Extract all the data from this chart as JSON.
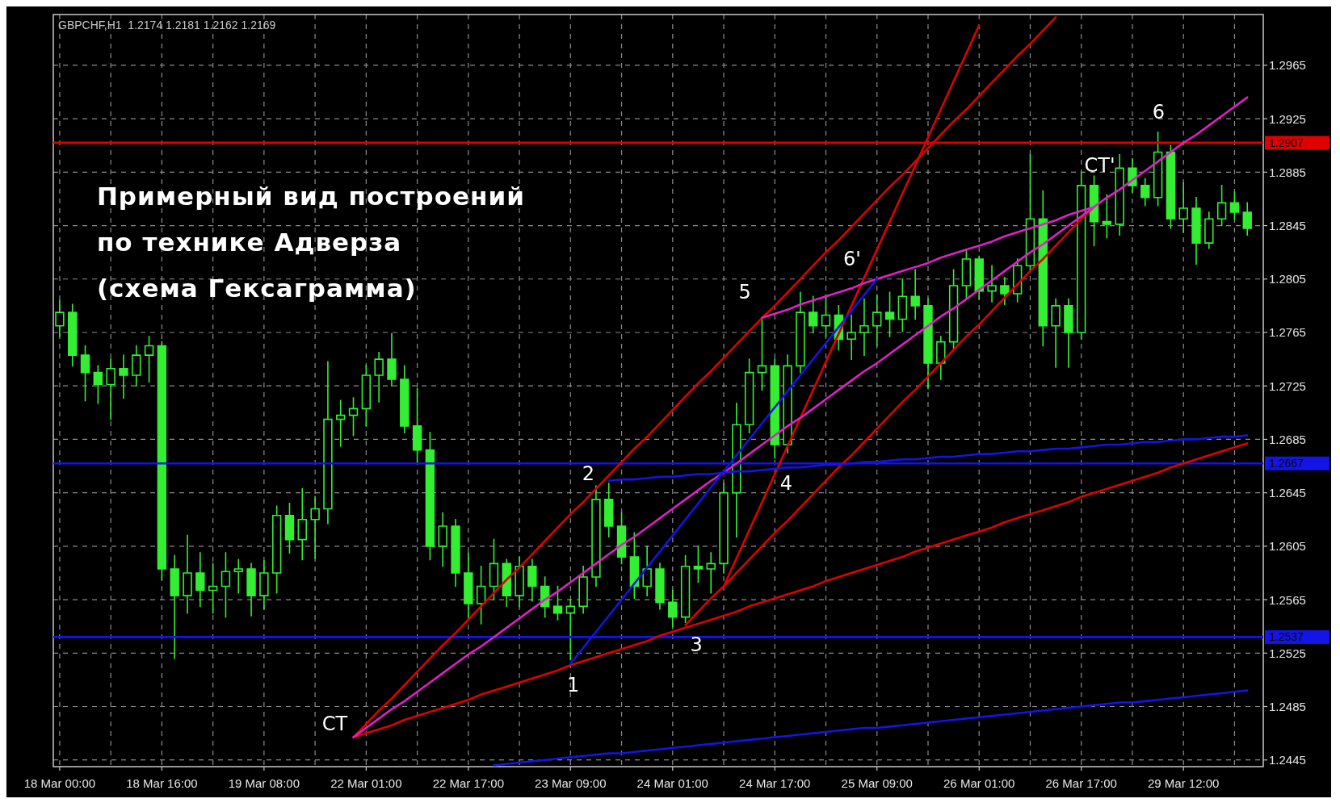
{
  "chart_data": {
    "type": "candlestick",
    "title": "GBPCHF,H1  1.2174 1.2181 1.2162 1.2169",
    "color": "#33ee33",
    "categories": [
      "18 Mar 00:00",
      null,
      null,
      null,
      null,
      null,
      null,
      null,
      "18 Mar 16:00",
      null,
      null,
      null,
      null,
      null,
      null,
      null,
      "19 Mar 08:00",
      null,
      null,
      null,
      null,
      null,
      null,
      null,
      "22 Mar 01:00",
      null,
      null,
      null,
      null,
      null,
      null,
      null,
      "22 Mar 17:00",
      null,
      null,
      null,
      null,
      null,
      null,
      null,
      "23 Mar 09:00",
      null,
      null,
      null,
      null,
      null,
      null,
      null,
      "24 Mar 01:00",
      null,
      null,
      null,
      null,
      null,
      null,
      null,
      "24 Mar 17:00",
      null,
      null,
      null,
      null,
      null,
      null,
      null,
      "25 Mar 09:00",
      null,
      null,
      null,
      null,
      null,
      null,
      null,
      "26 Mar 01:00",
      null,
      null,
      null,
      null,
      null,
      null,
      null,
      "26 Mar 17:00",
      null,
      null,
      null,
      null,
      null,
      null,
      null,
      "29 Mar 12:00",
      null,
      null,
      null,
      null,
      null
    ],
    "ohlc": [
      [
        1.277,
        1.2789,
        1.2762,
        1.278
      ],
      [
        1.278,
        1.2786,
        1.274,
        1.2748
      ],
      [
        1.2748,
        1.2755,
        1.2714,
        1.2735
      ],
      [
        1.2735,
        1.274,
        1.2712,
        1.2726
      ],
      [
        1.2726,
        1.2745,
        1.27,
        1.2738
      ],
      [
        1.2738,
        1.2748,
        1.2716,
        1.2733
      ],
      [
        1.2733,
        1.2755,
        1.2725,
        1.2748
      ],
      [
        1.2748,
        1.2762,
        1.2728,
        1.2755
      ],
      [
        1.2755,
        1.2758,
        1.258,
        1.2588
      ],
      [
        1.2588,
        1.2598,
        1.2521,
        1.2568
      ],
      [
        1.2568,
        1.2613,
        1.2555,
        1.2585
      ],
      [
        1.2585,
        1.26,
        1.256,
        1.2572
      ],
      [
        1.2572,
        1.2592,
        1.2555,
        1.2575
      ],
      [
        1.2575,
        1.26,
        1.2552,
        1.2586
      ],
      [
        1.2586,
        1.2595,
        1.257,
        1.2588
      ],
      [
        1.2588,
        1.2592,
        1.2553,
        1.2568
      ],
      [
        1.2568,
        1.2594,
        1.2558,
        1.2585
      ],
      [
        1.2585,
        1.2635,
        1.257,
        1.2628
      ],
      [
        1.2628,
        1.2637,
        1.26,
        1.261
      ],
      [
        1.261,
        1.2648,
        1.2595,
        1.2625
      ],
      [
        1.2625,
        1.2642,
        1.2596,
        1.2633
      ],
      [
        1.2633,
        1.2743,
        1.2622,
        1.27
      ],
      [
        1.27,
        1.2714,
        1.268,
        1.2703
      ],
      [
        1.2703,
        1.2716,
        1.2688,
        1.2708
      ],
      [
        1.2708,
        1.274,
        1.2695,
        1.2733
      ],
      [
        1.2733,
        1.275,
        1.2713,
        1.2745
      ],
      [
        1.2745,
        1.2764,
        1.2725,
        1.273
      ],
      [
        1.273,
        1.274,
        1.269,
        1.2695
      ],
      [
        1.2695,
        1.2723,
        1.2668,
        1.2677
      ],
      [
        1.2677,
        1.269,
        1.2595,
        1.2605
      ],
      [
        1.2605,
        1.263,
        1.259,
        1.262
      ],
      [
        1.262,
        1.2625,
        1.2575,
        1.2585
      ],
      [
        1.2585,
        1.26,
        1.2552,
        1.2562
      ],
      [
        1.2562,
        1.259,
        1.2547,
        1.2575
      ],
      [
        1.2575,
        1.261,
        1.2565,
        1.2592
      ],
      [
        1.2592,
        1.2595,
        1.256,
        1.2568
      ],
      [
        1.2568,
        1.2597,
        1.256,
        1.259
      ],
      [
        1.259,
        1.2595,
        1.2564,
        1.2575
      ],
      [
        1.2575,
        1.2582,
        1.2552,
        1.256
      ],
      [
        1.256,
        1.2575,
        1.255,
        1.2555
      ],
      [
        1.2555,
        1.2565,
        1.252,
        1.256
      ],
      [
        1.256,
        1.259,
        1.2555,
        1.2582
      ],
      [
        1.2582,
        1.265,
        1.2575,
        1.264
      ],
      [
        1.264,
        1.2652,
        1.2612,
        1.262
      ],
      [
        1.262,
        1.263,
        1.2592,
        1.2597
      ],
      [
        1.2597,
        1.2615,
        1.2566,
        1.2575
      ],
      [
        1.2575,
        1.2605,
        1.2568,
        1.2588
      ],
      [
        1.2588,
        1.2592,
        1.2558,
        1.2563
      ],
      [
        1.2563,
        1.2572,
        1.2545,
        1.2552
      ],
      [
        1.2552,
        1.2598,
        1.2548,
        1.259
      ],
      [
        1.259,
        1.2605,
        1.2578,
        1.2588
      ],
      [
        1.2588,
        1.26,
        1.257,
        1.2592
      ],
      [
        1.2592,
        1.2652,
        1.2585,
        1.2645
      ],
      [
        1.2645,
        1.2712,
        1.2612,
        1.2696
      ],
      [
        1.2696,
        1.2745,
        1.269,
        1.2735
      ],
      [
        1.2735,
        1.2775,
        1.2722,
        1.274
      ],
      [
        1.274,
        1.2745,
        1.2671,
        1.2681
      ],
      [
        1.2681,
        1.2748,
        1.2675,
        1.274
      ],
      [
        1.274,
        1.2795,
        1.2735,
        1.278
      ],
      [
        1.278,
        1.2792,
        1.2765,
        1.277
      ],
      [
        1.277,
        1.2793,
        1.2762,
        1.2778
      ],
      [
        1.2778,
        1.2785,
        1.2752,
        1.276
      ],
      [
        1.276,
        1.2778,
        1.2745,
        1.2765
      ],
      [
        1.2765,
        1.279,
        1.2748,
        1.277
      ],
      [
        1.277,
        1.2793,
        1.2755,
        1.278
      ],
      [
        1.278,
        1.2795,
        1.2762,
        1.2775
      ],
      [
        1.2775,
        1.2805,
        1.2766,
        1.2792
      ],
      [
        1.2792,
        1.2812,
        1.2775,
        1.2785
      ],
      [
        1.2785,
        1.279,
        1.2723,
        1.2742
      ],
      [
        1.2742,
        1.2762,
        1.273,
        1.2758
      ],
      [
        1.2758,
        1.2812,
        1.2752,
        1.28
      ],
      [
        1.28,
        1.2827,
        1.279,
        1.282
      ],
      [
        1.282,
        1.2822,
        1.279,
        1.2796
      ],
      [
        1.2796,
        1.2815,
        1.2788,
        1.28
      ],
      [
        1.28,
        1.2806,
        1.2786,
        1.2794
      ],
      [
        1.2794,
        1.282,
        1.2788,
        1.2815
      ],
      [
        1.2815,
        1.2898,
        1.2812,
        1.285
      ],
      [
        1.285,
        1.2871,
        1.2755,
        1.277
      ],
      [
        1.277,
        1.279,
        1.2739,
        1.2785
      ],
      [
        1.2785,
        1.279,
        1.2739,
        1.2765
      ],
      [
        1.2765,
        1.2885,
        1.276,
        1.2875
      ],
      [
        1.2875,
        1.2882,
        1.283,
        1.2848
      ],
      [
        1.2848,
        1.2868,
        1.2836,
        1.2846
      ],
      [
        1.2846,
        1.2898,
        1.2838,
        1.2888
      ],
      [
        1.2888,
        1.2895,
        1.287,
        1.2875
      ],
      [
        1.2875,
        1.288,
        1.286,
        1.2866
      ],
      [
        1.2866,
        1.2915,
        1.286,
        1.29
      ],
      [
        1.29,
        1.2905,
        1.2843,
        1.285
      ],
      [
        1.285,
        1.2877,
        1.284,
        1.2858
      ],
      [
        1.2858,
        1.2866,
        1.2816,
        1.2832
      ],
      [
        1.2832,
        1.2855,
        1.2828,
        1.285
      ],
      [
        1.285,
        1.2875,
        1.2845,
        1.2862
      ],
      [
        1.2862,
        1.287,
        1.285,
        1.2855
      ],
      [
        1.2855,
        1.2862,
        1.2838,
        1.2843
      ]
    ],
    "series": [
      {
        "type": "line",
        "color": "#e00000",
        "values": [
          null,
          null,
          null,
          null,
          null,
          null,
          null,
          null,
          null,
          null,
          null,
          null,
          null,
          null,
          null,
          null,
          null,
          null,
          null,
          null,
          null,
          null,
          null,
          1.2462,
          1.2472,
          1.2482,
          1.2491,
          1.2501,
          1.2511,
          1.2521,
          1.2531,
          1.254,
          1.255,
          1.256,
          1.257,
          1.258,
          1.2589,
          1.2599,
          1.2609,
          1.2619,
          1.2629,
          1.2638,
          1.2648,
          1.2658,
          1.2668,
          1.2678,
          1.2687,
          1.2697,
          1.2707,
          1.2717,
          1.2727,
          1.2736,
          1.2746,
          1.2756,
          1.2766,
          1.2776,
          1.2785,
          1.2795,
          1.2805,
          1.2815,
          1.2825,
          1.2834,
          1.2844,
          1.2854,
          1.2864,
          1.2874,
          1.2883,
          1.2893,
          1.2903,
          1.2913,
          1.2923,
          1.2932,
          1.2942,
          1.2952,
          1.2962,
          1.2972,
          1.2981,
          1.2991,
          1.3001,
          null,
          null,
          null,
          null,
          null,
          null,
          null,
          null,
          null,
          null,
          null,
          null,
          null,
          null,
          null
        ]
      },
      {
        "type": "line",
        "color": "#e00000",
        "values": [
          null,
          null,
          null,
          null,
          null,
          null,
          null,
          null,
          null,
          null,
          null,
          null,
          null,
          null,
          null,
          null,
          null,
          null,
          null,
          null,
          null,
          null,
          null,
          null,
          null,
          null,
          null,
          null,
          null,
          null,
          null,
          null,
          null,
          null,
          null,
          null,
          null,
          null,
          null,
          null,
          null,
          null,
          null,
          null,
          null,
          null,
          null,
          null,
          null,
          null,
          null,
          null,
          1.2575,
          1.2596,
          1.2617,
          1.2638,
          1.2659,
          1.268,
          1.2701,
          1.2722,
          1.2743,
          1.2764,
          1.2785,
          1.2806,
          1.2827,
          1.2848,
          1.2869,
          1.289,
          1.2911,
          1.2932,
          1.2953,
          1.2974,
          1.2995,
          null,
          null,
          null,
          null,
          null,
          null,
          null,
          null,
          null,
          null,
          null,
          null,
          null,
          null,
          null,
          null,
          null,
          null,
          null,
          null,
          null
        ]
      },
      {
        "type": "line",
        "color": "#e00000",
        "values": [
          null,
          null,
          null,
          null,
          null,
          null,
          null,
          null,
          null,
          null,
          null,
          null,
          null,
          null,
          null,
          null,
          null,
          null,
          null,
          null,
          null,
          null,
          null,
          1.2462,
          1.2465,
          1.2468,
          1.2471,
          1.2475,
          1.2478,
          1.2481,
          1.2484,
          1.2487,
          1.249,
          1.2494,
          1.2497,
          1.25,
          1.2503,
          1.2506,
          1.2509,
          1.2512,
          1.2516,
          1.2519,
          1.2522,
          1.2525,
          1.2528,
          1.2531,
          1.2534,
          1.2538,
          1.2541,
          1.2544,
          1.2547,
          1.255,
          1.2553,
          1.2556,
          1.256,
          1.2563,
          1.2566,
          1.2569,
          1.2572,
          1.2575,
          1.2579,
          1.2582,
          1.2585,
          1.2588,
          1.2591,
          1.2594,
          1.2597,
          1.2601,
          1.2604,
          1.2607,
          1.261,
          1.2613,
          1.2616,
          1.2619,
          1.2623,
          1.2626,
          1.2629,
          1.2632,
          1.2635,
          1.2638,
          1.2642,
          1.2645,
          1.2648,
          1.2651,
          1.2654,
          1.2657,
          1.266,
          1.2664,
          1.2667,
          1.267,
          1.2673,
          1.2676,
          1.2679,
          1.2682
        ]
      },
      {
        "type": "line",
        "color": "#e00000",
        "values": [
          null,
          null,
          null,
          null,
          null,
          null,
          null,
          null,
          null,
          null,
          null,
          null,
          null,
          null,
          null,
          null,
          null,
          null,
          null,
          null,
          null,
          null,
          null,
          null,
          null,
          null,
          null,
          null,
          null,
          null,
          null,
          null,
          null,
          null,
          null,
          null,
          null,
          null,
          null,
          null,
          null,
          null,
          null,
          null,
          null,
          null,
          null,
          null,
          null,
          1.2546,
          1.2556,
          1.2566,
          1.2575,
          1.2585,
          1.2595,
          1.2605,
          1.2615,
          1.2624,
          1.2634,
          1.2644,
          1.2654,
          1.2664,
          1.2673,
          1.2683,
          1.2693,
          1.2703,
          1.2713,
          1.2722,
          1.2732,
          1.2742,
          1.2752,
          1.2762,
          1.2771,
          1.2781,
          1.2791,
          1.2801,
          1.2811,
          1.282,
          1.283,
          1.284,
          1.285,
          1.2859,
          null,
          null,
          null,
          null,
          null,
          null,
          null,
          null,
          null,
          null,
          null,
          null
        ]
      },
      {
        "type": "line",
        "color": "#e020c8",
        "values": [
          null,
          null,
          null,
          null,
          null,
          null,
          null,
          null,
          null,
          null,
          null,
          null,
          null,
          null,
          null,
          null,
          null,
          null,
          null,
          null,
          null,
          null,
          null,
          1.2462,
          1.2469,
          1.2476,
          1.2483,
          1.2489,
          1.2496,
          1.2503,
          1.251,
          1.2517,
          1.2524,
          1.253,
          1.2537,
          1.2544,
          1.2551,
          1.2558,
          1.2565,
          1.2571,
          1.2578,
          1.2585,
          1.2592,
          1.2599,
          1.2606,
          1.2612,
          1.2619,
          1.2626,
          1.2633,
          1.264,
          1.2647,
          1.2654,
          1.266,
          1.2667,
          1.2674,
          1.2681,
          1.2688,
          1.2695,
          1.2701,
          1.2708,
          1.2715,
          1.2722,
          1.2729,
          1.2736,
          1.2742,
          1.2749,
          1.2756,
          1.2763,
          1.277,
          1.2777,
          1.2783,
          1.279,
          1.2797,
          1.2804,
          1.2811,
          1.2818,
          1.2825,
          1.2831,
          1.2838,
          1.2845,
          1.2852,
          1.2859,
          1.2866,
          1.2872,
          1.2879,
          1.2886,
          1.2893,
          1.29,
          1.2907,
          1.2913,
          1.292,
          1.2927,
          1.2934,
          1.2941
        ]
      },
      {
        "type": "line",
        "color": "#e020c8",
        "values": [
          null,
          null,
          null,
          null,
          null,
          null,
          null,
          null,
          null,
          null,
          null,
          null,
          null,
          null,
          null,
          null,
          null,
          null,
          null,
          null,
          null,
          null,
          null,
          null,
          null,
          null,
          null,
          null,
          null,
          null,
          null,
          null,
          null,
          null,
          null,
          null,
          null,
          null,
          null,
          null,
          null,
          null,
          null,
          null,
          null,
          null,
          null,
          null,
          null,
          null,
          null,
          null,
          null,
          null,
          null,
          1.2776,
          1.2779,
          1.2782,
          1.2786,
          1.2789,
          1.2792,
          1.2795,
          1.2798,
          1.2802,
          1.2805,
          1.2808,
          1.2811,
          1.2814,
          1.2817,
          1.2821,
          1.2824,
          1.2827,
          1.283,
          1.2833,
          1.2837,
          1.284,
          1.2843,
          1.2846,
          1.2849,
          1.2853,
          1.2856,
          1.2859,
          null,
          null,
          null,
          null,
          null,
          null,
          null,
          null,
          null,
          null,
          null,
          null
        ]
      },
      {
        "type": "line",
        "color": "#1414e6",
        "values": [
          null,
          null,
          null,
          null,
          null,
          null,
          null,
          null,
          null,
          null,
          null,
          null,
          null,
          null,
          null,
          null,
          null,
          null,
          null,
          null,
          null,
          null,
          null,
          null,
          null,
          null,
          null,
          null,
          null,
          null,
          null,
          null,
          null,
          null,
          null,
          null,
          null,
          null,
          null,
          null,
          1.2517,
          1.2529,
          1.2541,
          1.2553,
          1.2565,
          1.2577,
          1.2589,
          1.2601,
          1.2613,
          1.2625,
          1.2637,
          1.2649,
          1.2661,
          1.2673,
          1.2685,
          1.2697,
          1.2709,
          1.2721,
          1.2733,
          1.2745,
          1.2757,
          1.2769,
          1.2781,
          1.2793,
          1.2805,
          null,
          null,
          null,
          null,
          null,
          null,
          null,
          null,
          null,
          null,
          null,
          null,
          null,
          null,
          null,
          null,
          null,
          null,
          null,
          null,
          null,
          null,
          null,
          null,
          null,
          null,
          null,
          null,
          null
        ]
      },
      {
        "type": "line",
        "color": "#1414e6",
        "values": [
          null,
          null,
          null,
          null,
          null,
          null,
          null,
          null,
          null,
          null,
          null,
          null,
          null,
          null,
          null,
          null,
          null,
          null,
          null,
          null,
          null,
          null,
          null,
          null,
          null,
          null,
          null,
          null,
          null,
          null,
          null,
          null,
          null,
          null,
          null,
          null,
          null,
          null,
          null,
          null,
          null,
          null,
          null,
          1.2654,
          1.2655,
          1.2655,
          1.2656,
          1.2657,
          1.2657,
          1.2658,
          1.2659,
          1.2659,
          1.266,
          1.2661,
          1.2661,
          1.2662,
          1.2663,
          1.2664,
          1.2664,
          1.2665,
          1.2666,
          1.2666,
          1.2667,
          1.2668,
          1.2668,
          1.2669,
          1.267,
          1.267,
          1.2671,
          1.2672,
          1.2672,
          1.2673,
          1.2674,
          1.2674,
          1.2675,
          1.2676,
          1.2676,
          1.2677,
          1.2678,
          1.2678,
          1.2679,
          1.268,
          1.2681,
          1.2681,
          1.2682,
          1.2683,
          1.2683,
          1.2684,
          1.2685,
          1.2685,
          1.2686,
          1.2687,
          1.2687,
          1.2688
        ]
      },
      {
        "type": "line",
        "color": "#1414e6",
        "values": [
          null,
          null,
          null,
          null,
          null,
          null,
          null,
          null,
          null,
          null,
          null,
          null,
          null,
          null,
          null,
          null,
          null,
          null,
          null,
          null,
          null,
          null,
          null,
          null,
          null,
          null,
          null,
          null,
          null,
          null,
          null,
          null,
          null,
          null,
          1.2441,
          1.2442,
          1.2443,
          1.2444,
          1.2445,
          1.2446,
          1.2447,
          1.2448,
          1.2449,
          1.245,
          1.245,
          1.2451,
          1.2452,
          1.2453,
          1.2454,
          1.2455,
          1.2456,
          1.2457,
          1.2458,
          1.2459,
          1.246,
          1.2461,
          1.2462,
          1.2463,
          1.2464,
          1.2465,
          1.2466,
          1.2467,
          1.2468,
          1.2469,
          1.2469,
          1.247,
          1.2471,
          1.2472,
          1.2473,
          1.2474,
          1.2475,
          1.2476,
          1.2477,
          1.2478,
          1.2479,
          1.248,
          1.2481,
          1.2482,
          1.2483,
          1.2484,
          1.2485,
          1.2486,
          1.2487,
          1.2488,
          1.2488,
          1.2489,
          1.249,
          1.2491,
          1.2492,
          1.2493,
          1.2494,
          1.2495,
          1.2496,
          1.2497
        ]
      }
    ],
    "ref_lines": [
      {
        "axis": "y",
        "value": 1.2907,
        "label": "1.2907",
        "color": "#e00000"
      },
      {
        "axis": "y",
        "value": 1.2667,
        "label": "1.2667",
        "color": "#1414e6"
      },
      {
        "axis": "y",
        "value": 1.2537,
        "label": "1.2537",
        "color": "#1414e6"
      }
    ],
    "ylim": [
      1.244,
      1.3003
    ],
    "yticks": [
      1.2445,
      1.2485,
      1.2525,
      1.2565,
      1.2605,
      1.2645,
      1.2685,
      1.2725,
      1.2765,
      1.2805,
      1.2845,
      1.2885,
      1.2925,
      1.2965
    ],
    "grid": true,
    "annotations": [
      "Примерный вид построений",
      "по технике Адверза",
      "(схема Гексаграмма)",
      "CT",
      "1",
      "2",
      "3",
      "4",
      "5",
      "6'",
      "CT'",
      "6"
    ]
  }
}
